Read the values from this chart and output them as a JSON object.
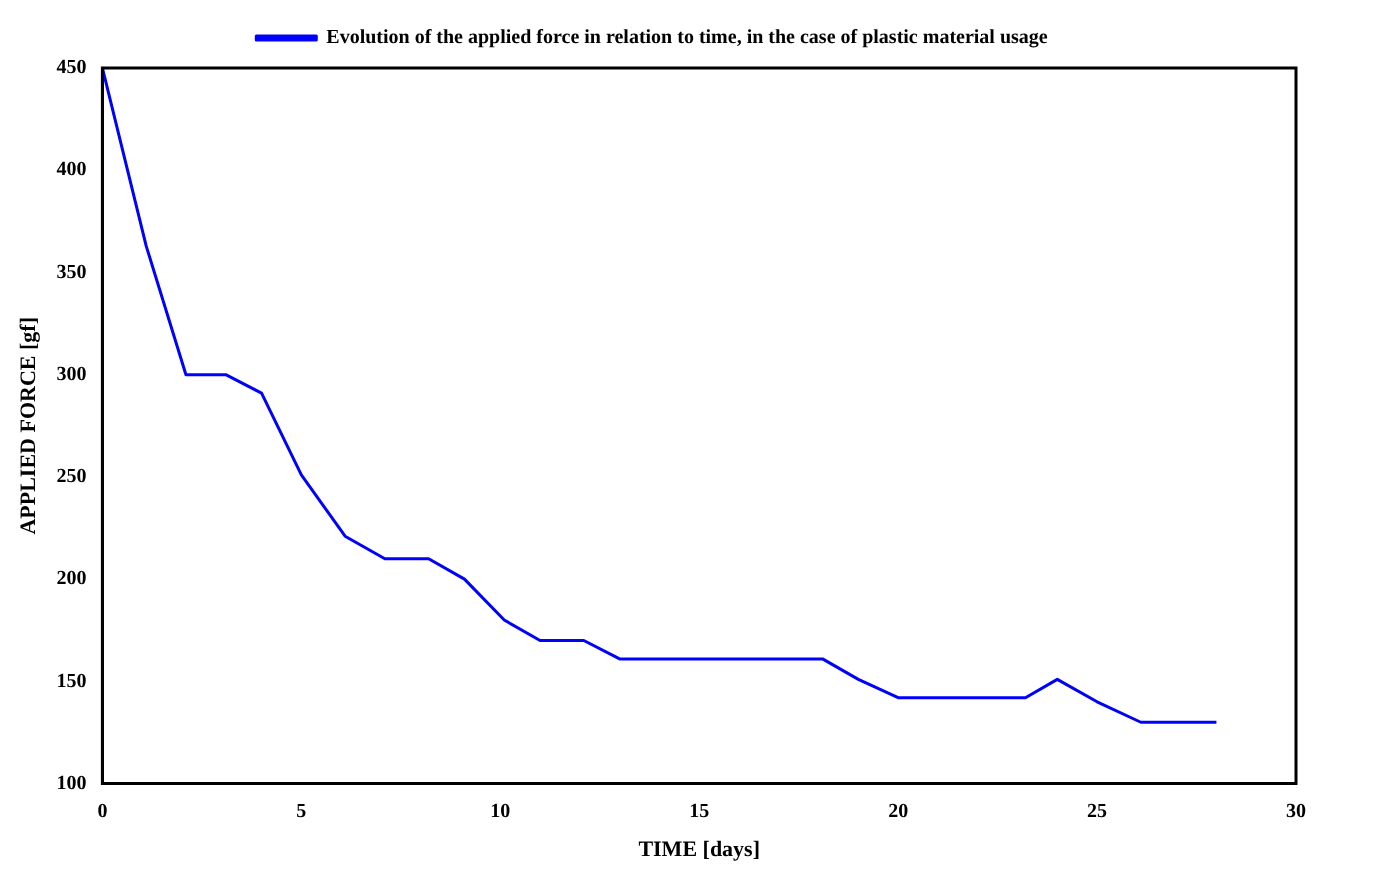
{
  "chart_data": {
    "type": "line",
    "xlabel": "TIME [days]",
    "ylabel": "APPLIED FORCE [gf]",
    "xlim": [
      0,
      30
    ],
    "xticks": [
      0,
      5,
      10,
      15,
      20,
      25,
      30
    ],
    "ylim": [
      100,
      450
    ],
    "yticks": [
      100,
      150,
      200,
      250,
      300,
      350,
      400,
      450
    ],
    "grid": false,
    "legend": "top",
    "marker": "none",
    "line_style": "solid",
    "series": [
      {
        "name": "Evolution of the applied force in relation to time, in the case of plastic material usage",
        "color": "#0000ff",
        "x": [
          0,
          1.1,
          2.1,
          3.1,
          4,
          5,
          6.1,
          7.1,
          8.2,
          9.1,
          10.1,
          11,
          12.1,
          13,
          18.1,
          19,
          20,
          23.2,
          24,
          25,
          26.1,
          28
        ],
        "values": [
          450,
          363,
          300,
          300,
          291,
          251,
          221,
          210,
          210,
          200,
          180,
          170,
          170,
          161,
          161,
          151,
          142,
          142,
          151,
          140,
          130,
          130
        ]
      }
    ]
  }
}
